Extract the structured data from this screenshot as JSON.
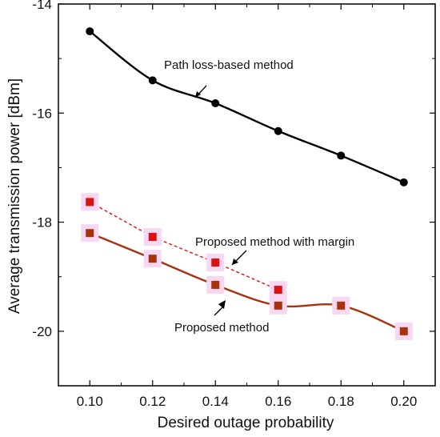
{
  "chart_data": {
    "type": "line",
    "xlabel": "Desired outage probability",
    "ylabel": "Average transmission power [dBm]",
    "xlim": [
      0.09,
      0.21
    ],
    "ylim": [
      -21,
      -14
    ],
    "x_ticks": [
      "0.10",
      "0.12",
      "0.14",
      "0.16",
      "0.18",
      "0.20"
    ],
    "y_ticks": [
      "-14",
      "-16",
      "-18",
      "-20"
    ],
    "grid": false,
    "series": [
      {
        "name": "Path loss-based method",
        "color": "#000000",
        "marker": "circle",
        "line_style": "solid",
        "x": [
          0.1,
          0.12,
          0.14,
          0.16,
          0.18,
          0.2
        ],
        "y": [
          -14.5,
          -15.4,
          -15.82,
          -16.33,
          -16.78,
          -17.27
        ]
      },
      {
        "name": "Proposed method with margin",
        "color": "#dd1111",
        "marker": "square",
        "line_style": "dashed",
        "x": [
          0.1,
          0.12,
          0.14,
          0.16
        ],
        "y": [
          -17.63,
          -18.27,
          -18.74,
          -19.24
        ]
      },
      {
        "name": "Proposed method",
        "color": "#a8320c",
        "marker": "square",
        "line_style": "solid",
        "x": [
          0.1,
          0.12,
          0.14,
          0.16,
          0.18,
          0.2
        ],
        "y": [
          -18.2,
          -18.67,
          -19.15,
          -19.53,
          -19.53,
          -20.0
        ]
      }
    ],
    "annotations": [
      {
        "text": "Path loss-based method",
        "target_series": 0
      },
      {
        "text": "Proposed method with margin",
        "target_series": 1
      },
      {
        "text": "Proposed method",
        "target_series": 2
      }
    ]
  }
}
